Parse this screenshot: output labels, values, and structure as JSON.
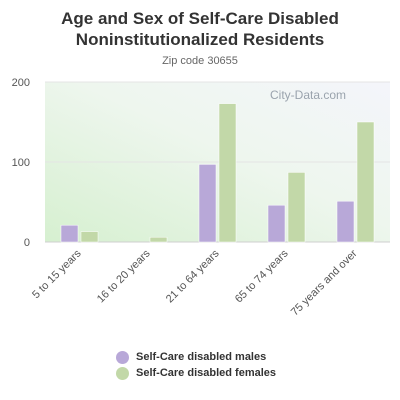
{
  "header": {
    "title_line1": "Age and Sex of Self-Care Disabled",
    "title_line2": "Noninstitutionalized Residents",
    "subtitle": "Zip code 30655"
  },
  "watermark": "City-Data.com",
  "colors": {
    "males": "#b8a8d8",
    "females": "#c2d8a8",
    "gridline": "#e4e4e4",
    "axis": "#cfcfcf"
  },
  "chart_data": {
    "type": "bar",
    "title": "Age and Sex of Self-Care Disabled Noninstitutionalized Residents",
    "subtitle": "Zip code 30655",
    "categories": [
      "5 to 15 years",
      "16 to 20 years",
      "21 to 64 years",
      "65 to 74 years",
      "75 years and over"
    ],
    "series": [
      {
        "name": "Self-Care disabled males",
        "color": "#b8a8d8",
        "values": [
          21,
          0,
          97,
          46,
          51
        ]
      },
      {
        "name": "Self-Care disabled females",
        "color": "#c2d8a8",
        "values": [
          13,
          6,
          173,
          87,
          150
        ]
      }
    ],
    "ylim": [
      0,
      200
    ],
    "yticks": [
      0,
      100,
      200
    ],
    "grid": true,
    "legend_position": "bottom"
  }
}
